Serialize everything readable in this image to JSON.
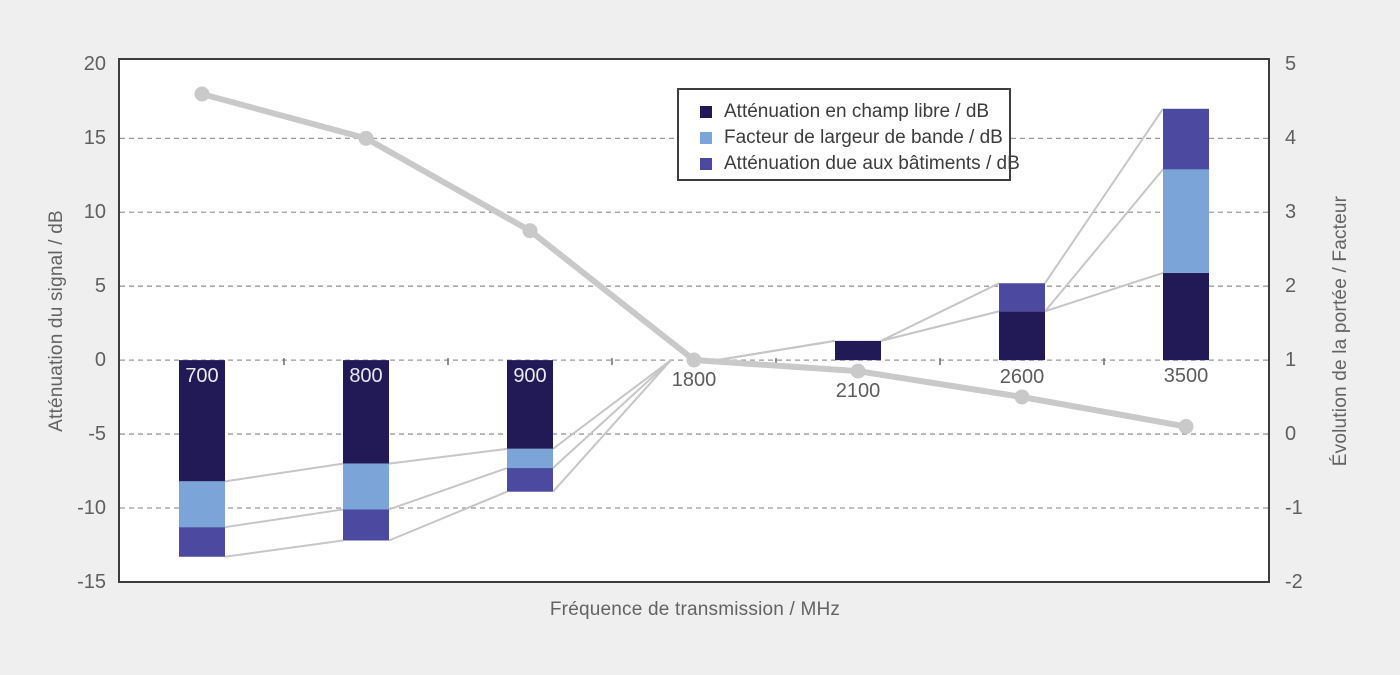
{
  "page": {
    "background": "#efefef",
    "plot_background": "#ffffff",
    "border_color": "#3d3d3d"
  },
  "chart_data": {
    "type": "bar+line",
    "categories": [
      "700",
      "800",
      "900",
      "1800",
      "2100",
      "2600",
      "3500"
    ],
    "series": [
      {
        "name": "Atténuation en champ libre / dB",
        "type": "bar",
        "color": "#221a57",
        "values": [
          -8.2,
          -7.0,
          -6.0,
          0,
          1.3,
          3.3,
          5.9
        ]
      },
      {
        "name": "Facteur de largeur de bande / dB",
        "type": "bar",
        "color": "#7ba4d9",
        "values": [
          -3.1,
          -3.1,
          -1.3,
          0,
          0,
          0,
          7.0
        ]
      },
      {
        "name": "Atténuation due aux bâtiments / dB",
        "type": "bar",
        "color": "#4b49a0",
        "values": [
          -2.0,
          -2.1,
          -1.6,
          0,
          0,
          1.9,
          4.1
        ]
      },
      {
        "name": "Évolution de la portée / Facteur",
        "type": "line",
        "axis": "right",
        "color": "#c9c9c9",
        "values": [
          4.6,
          4.0,
          2.75,
          1.0,
          0.85,
          0.5,
          0.1
        ]
      }
    ],
    "xlabel": "Fréquence de transmission / MHz",
    "left_axis": {
      "label": "Atténuation du signal / dB",
      "ticks": [
        20,
        15,
        10,
        5,
        0,
        -5,
        -10,
        -15
      ],
      "grid_ticks": [
        15,
        10,
        5,
        0,
        -5,
        -10
      ],
      "max": 20.3,
      "min": -14.94
    },
    "right_axis": {
      "label": "Évolution de la portée / Facteur",
      "ticks": [
        5,
        4,
        3,
        2,
        1,
        0,
        -1,
        -2
      ],
      "max": 5.06,
      "min": -1.99
    },
    "grid": "dashed horizontal",
    "legend": {
      "position": "top-right-inside",
      "entries": [
        "Atténuation en champ libre / dB",
        "Facteur de largeur de bande / dB",
        "Atténuation due aux bâtiments / dB"
      ]
    },
    "styles": {
      "grid_color": "#999999",
      "connector_color": "#c6c6c6",
      "line_color": "#c9c9c9",
      "bar_label_inside_color": "#e9e9f1",
      "bar_label_outside_color": "#5c5c5c",
      "axis_tick_color": "#6a6a6a"
    }
  }
}
